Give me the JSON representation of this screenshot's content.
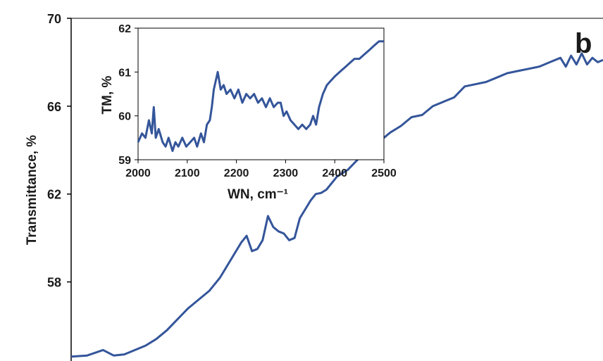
{
  "colors": {
    "line": "#34559a",
    "axis": "#000000",
    "text": "#1a1a1a"
  },
  "panel_label": "b",
  "chart_data": [
    {
      "type": "line",
      "ylabel": "Transmittance, %",
      "xlabel": "",
      "xlim": [
        0,
        100
      ],
      "ylim": [
        54.4,
        70
      ],
      "yticks": [
        58,
        62,
        66,
        70
      ],
      "grid": false,
      "series": [
        {
          "x": [
            0,
            3,
            6,
            8,
            10,
            12,
            14,
            16,
            18,
            20,
            22,
            24,
            26,
            28,
            30,
            32,
            33,
            34,
            35,
            36,
            37,
            38,
            39,
            40,
            41,
            42,
            43,
            44,
            45,
            46,
            47,
            48,
            50,
            52,
            54,
            56,
            58,
            60,
            62,
            64,
            66,
            68,
            70,
            72,
            74,
            76,
            78,
            80,
            82,
            84,
            86,
            88,
            90,
            92,
            93,
            94,
            95,
            96,
            97,
            98,
            99,
            100
          ],
          "y": [
            54.6,
            54.65,
            54.9,
            54.65,
            54.7,
            54.9,
            55.1,
            55.4,
            55.8,
            56.3,
            56.8,
            57.2,
            57.6,
            58.2,
            59.0,
            59.8,
            60.1,
            59.4,
            59.5,
            59.9,
            61.0,
            60.5,
            60.3,
            60.2,
            59.9,
            60.0,
            60.9,
            61.3,
            61.7,
            62.0,
            62.05,
            62.2,
            62.8,
            63.1,
            63.6,
            64.0,
            64.4,
            64.8,
            65.1,
            65.5,
            65.6,
            66.0,
            66.2,
            66.4,
            66.9,
            67.0,
            67.1,
            67.3,
            67.5,
            67.6,
            67.7,
            67.8,
            68.0,
            68.2,
            67.8,
            68.3,
            67.9,
            68.4,
            67.9,
            68.2,
            68.0,
            68.1
          ]
        }
      ]
    },
    {
      "type": "line",
      "xlabel": "WN, cm⁻¹",
      "ylabel": "TM, %",
      "xlim": [
        2000,
        2500
      ],
      "ylim": [
        59,
        62
      ],
      "xticks": [
        2000,
        2100,
        2200,
        2300,
        2400,
        2500
      ],
      "yticks": [
        59,
        60,
        61,
        62
      ],
      "grid": false,
      "series": [
        {
          "x": [
            2000,
            2008,
            2015,
            2022,
            2028,
            2032,
            2036,
            2042,
            2050,
            2056,
            2062,
            2070,
            2076,
            2082,
            2090,
            2098,
            2106,
            2114,
            2120,
            2128,
            2134,
            2140,
            2146,
            2150,
            2154,
            2158,
            2162,
            2168,
            2174,
            2180,
            2188,
            2196,
            2204,
            2212,
            2220,
            2228,
            2236,
            2244,
            2252,
            2260,
            2268,
            2276,
            2284,
            2290,
            2296,
            2302,
            2310,
            2318,
            2326,
            2334,
            2342,
            2350,
            2356,
            2362,
            2368,
            2376,
            2384,
            2392,
            2400,
            2410,
            2420,
            2430,
            2440,
            2450,
            2460,
            2470,
            2480,
            2490,
            2500
          ],
          "y": [
            59.4,
            59.6,
            59.5,
            59.9,
            59.6,
            60.2,
            59.5,
            59.7,
            59.4,
            59.3,
            59.5,
            59.2,
            59.4,
            59.3,
            59.5,
            59.3,
            59.4,
            59.5,
            59.3,
            59.6,
            59.4,
            59.8,
            59.9,
            60.2,
            60.6,
            60.8,
            61.0,
            60.6,
            60.7,
            60.5,
            60.6,
            60.4,
            60.6,
            60.3,
            60.5,
            60.4,
            60.5,
            60.3,
            60.4,
            60.2,
            60.4,
            60.2,
            60.3,
            60.3,
            60.0,
            60.1,
            59.9,
            59.8,
            59.7,
            59.8,
            59.7,
            59.8,
            60.0,
            59.8,
            60.2,
            60.5,
            60.7,
            60.8,
            60.9,
            61.0,
            61.1,
            61.2,
            61.3,
            61.3,
            61.4,
            61.5,
            61.6,
            61.7,
            61.7
          ]
        }
      ]
    }
  ]
}
